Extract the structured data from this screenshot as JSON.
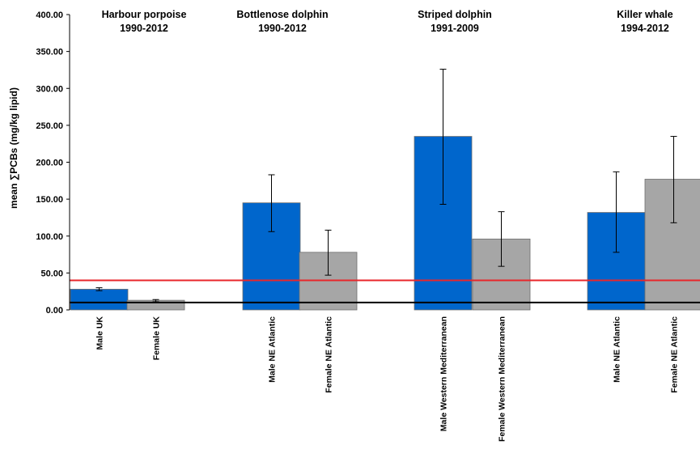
{
  "chart_data": {
    "type": "bar",
    "ylabel": "mean ∑PCBs (mg/kg lipid)",
    "ylim": [
      0,
      400
    ],
    "yticks": [
      0,
      50,
      100,
      150,
      200,
      250,
      300,
      350,
      400
    ],
    "ytick_labels": [
      "0.00",
      "50.00",
      "100.00",
      "150.00",
      "200.00",
      "250.00",
      "300.00",
      "350.00",
      "400.00"
    ],
    "grid": false,
    "legend": "none",
    "colors": {
      "male": "#0066CC",
      "female": "#A6A6A6",
      "red_line": "#E8262B",
      "black_line": "#000000"
    },
    "groups": [
      {
        "species": "Harbour porpoise",
        "years": "1990-2012"
      },
      {
        "species": "Bottlenose dolphin",
        "years": "1990-2012"
      },
      {
        "species": "Striped dolphin",
        "years": "1991-2009"
      },
      {
        "species": "Killer whale",
        "years": "1994-2012"
      }
    ],
    "categories": [
      "Male UK",
      "Female UK",
      "Male NE Atlantic",
      "Female NE Atlantic",
      "Male Western Mediterranean",
      "Female Western Mediterranean",
      "Male NE Atlantic",
      "Female NE Atlantic"
    ],
    "series": [
      {
        "values": [
          28,
          13,
          145,
          78,
          235,
          96,
          132,
          177
        ],
        "color_key": [
          "male",
          "female",
          "male",
          "female",
          "male",
          "female",
          "male",
          "female"
        ]
      }
    ],
    "error_bars": [
      [
        26,
        30
      ],
      [
        11,
        14
      ],
      [
        106,
        183
      ],
      [
        47,
        108
      ],
      [
        143,
        326
      ],
      [
        59,
        133
      ],
      [
        78,
        187
      ],
      [
        118,
        235
      ]
    ],
    "reference_lines": [
      {
        "value": 40,
        "color_key": "red_line"
      },
      {
        "value": 10,
        "color_key": "black_line"
      }
    ]
  }
}
